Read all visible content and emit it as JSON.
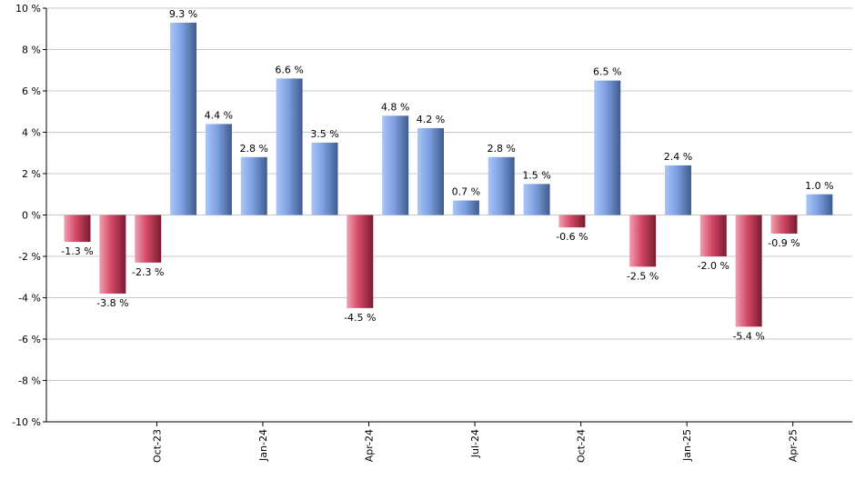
{
  "chart_data": {
    "type": "bar",
    "title": "",
    "xlabel": "",
    "ylabel": "",
    "ylim": [
      -10,
      10
    ],
    "y_ticks": [
      10,
      8,
      6,
      4,
      2,
      0,
      -2,
      -4,
      -6,
      -8,
      -10
    ],
    "y_tick_labels": [
      "10 %",
      "8 %",
      "6 %",
      "4 %",
      "2 %",
      "0 %",
      "-2 %",
      "-4 %",
      "-6 %",
      "-8 %",
      "-10 %"
    ],
    "grid": true,
    "legend": "none",
    "values": [
      -1.3,
      -3.8,
      -2.3,
      9.3,
      4.4,
      2.8,
      6.6,
      3.5,
      -4.5,
      4.8,
      4.2,
      0.7,
      2.8,
      1.5,
      -0.6,
      6.5,
      -2.5,
      2.4,
      -2.0,
      -5.4,
      -0.9,
      1.0
    ],
    "value_labels": [
      "-1.3 %",
      "-3.8 %",
      "-2.3 %",
      "9.3 %",
      "4.4 %",
      "2.8 %",
      "6.6 %",
      "3.5 %",
      "-4.5 %",
      "4.8 %",
      "4.2 %",
      "0.7 %",
      "2.8 %",
      "1.5 %",
      "-0.6 %",
      "6.5 %",
      "-2.5 %",
      "2.4 %",
      "-2.0 %",
      "-5.4 %",
      "-0.9 %",
      "1.0 %"
    ],
    "x_tick_labels": [
      "Oct-23",
      "Jan-24",
      "Apr-24",
      "Jul-24",
      "Oct-24",
      "Jan-25",
      "Apr-25"
    ],
    "x_tick_bar_index": [
      2.25,
      5.25,
      8.25,
      11.25,
      14.25,
      17.25,
      20.25
    ],
    "colors": {
      "positive_light": "#a9c6f8",
      "positive_mid": "#7d9fe0",
      "positive_dark": "#3f5c8c",
      "negative_light": "#f0a0b0",
      "negative_mid": "#d24866",
      "negative_dark": "#7a1c30",
      "grid": "#c8c8c8",
      "axis": "#000000"
    }
  }
}
